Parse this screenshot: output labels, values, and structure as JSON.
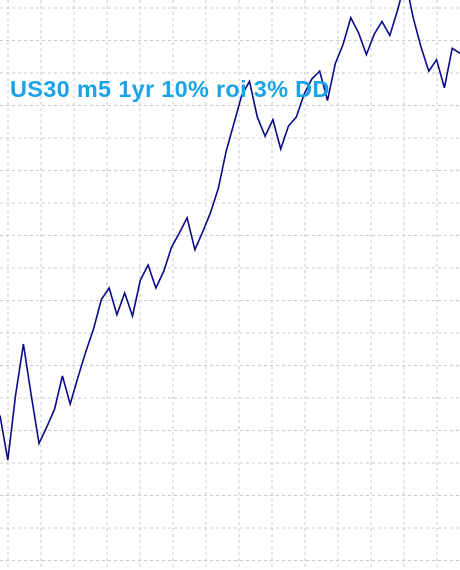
{
  "title": "US30 m5 1yr 10% roi 3% DD",
  "colors": {
    "line": "#0a0a8a",
    "title": "#1aa3e8",
    "grid": "#c8c8c8",
    "background": "#ffffff"
  },
  "chart_data": {
    "type": "line",
    "title": "US30 m5 1yr 10% roi 3% DD",
    "xlabel": "",
    "ylabel": "",
    "grid": true,
    "series": [
      {
        "values": [
          0.2,
          -3.3,
          1.8,
          5.8,
          1.8,
          -2.0,
          -0.7,
          0.7,
          3.3,
          1.1,
          3.2,
          5.2,
          7.0,
          9.3,
          10.2,
          8.1,
          9.8,
          8.0,
          10.8,
          12.0,
          10.2,
          11.5,
          13.4,
          14.5,
          15.7,
          13.2,
          14.6,
          16.1,
          18.0,
          20.9,
          23.1,
          25.3,
          26.4,
          23.6,
          22.1,
          23.4,
          21.1,
          22.9,
          23.6,
          25.4,
          26.6,
          27.2,
          24.9,
          27.8,
          29.3,
          31.4,
          30.2,
          28.5,
          30.1,
          31.1,
          30.0,
          32.0,
          34.3,
          31.4,
          29.1,
          27.2,
          28.1,
          25.9,
          29.0,
          28.6
        ]
      }
    ],
    "ylim": [
      -8,
      32
    ]
  }
}
